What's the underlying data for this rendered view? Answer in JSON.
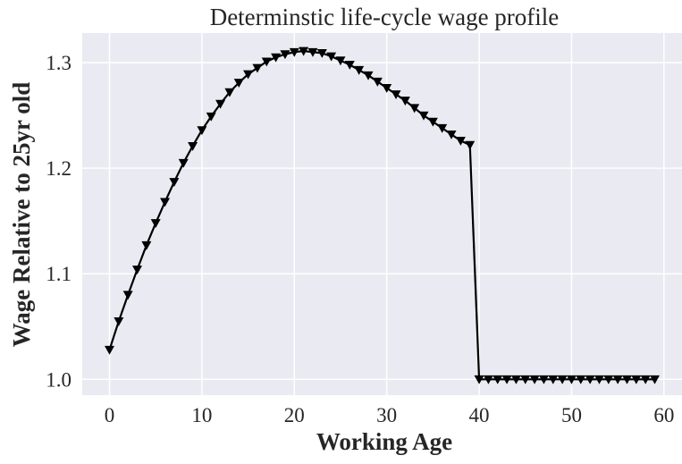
{
  "chart_data": {
    "type": "line",
    "title": "Determinstic life-cycle wage profile",
    "x_label": "Working Age",
    "y_label": "Wage Relative to 25yr old",
    "x": [
      0,
      1,
      2,
      3,
      4,
      5,
      6,
      7,
      8,
      9,
      10,
      11,
      12,
      13,
      14,
      15,
      16,
      17,
      18,
      19,
      20,
      21,
      22,
      23,
      24,
      25,
      26,
      27,
      28,
      29,
      30,
      31,
      32,
      33,
      34,
      35,
      36,
      37,
      38,
      39,
      40,
      41,
      42,
      43,
      44,
      45,
      46,
      47,
      48,
      49,
      50,
      51,
      52,
      53,
      54,
      55,
      56,
      57,
      58,
      59
    ],
    "series": [
      {
        "color": "#000000",
        "marker": "triangle-down",
        "values": [
          1.028,
          1.055,
          1.08,
          1.104,
          1.127,
          1.148,
          1.168,
          1.187,
          1.205,
          1.221,
          1.236,
          1.249,
          1.261,
          1.272,
          1.281,
          1.289,
          1.295,
          1.301,
          1.305,
          1.308,
          1.31,
          1.311,
          1.31,
          1.309,
          1.306,
          1.302,
          1.298,
          1.293,
          1.288,
          1.282,
          1.276,
          1.27,
          1.264,
          1.257,
          1.25,
          1.244,
          1.238,
          1.232,
          1.226,
          1.222,
          1.0,
          1.0,
          1.0,
          1.0,
          1.0,
          1.0,
          1.0,
          1.0,
          1.0,
          1.0,
          1.0,
          1.0,
          1.0,
          1.0,
          1.0,
          1.0,
          1.0,
          1.0,
          1.0,
          1.0
        ]
      }
    ],
    "xlim": [
      -2.95,
      61.95
    ],
    "ylim": [
      0.985,
      1.328
    ],
    "xticks": [
      0,
      10,
      20,
      30,
      40,
      50,
      60
    ],
    "yticks": [
      {
        "value": 1,
        "label": "1.0"
      },
      1.1,
      1.2,
      1.3
    ],
    "grid": true
  }
}
